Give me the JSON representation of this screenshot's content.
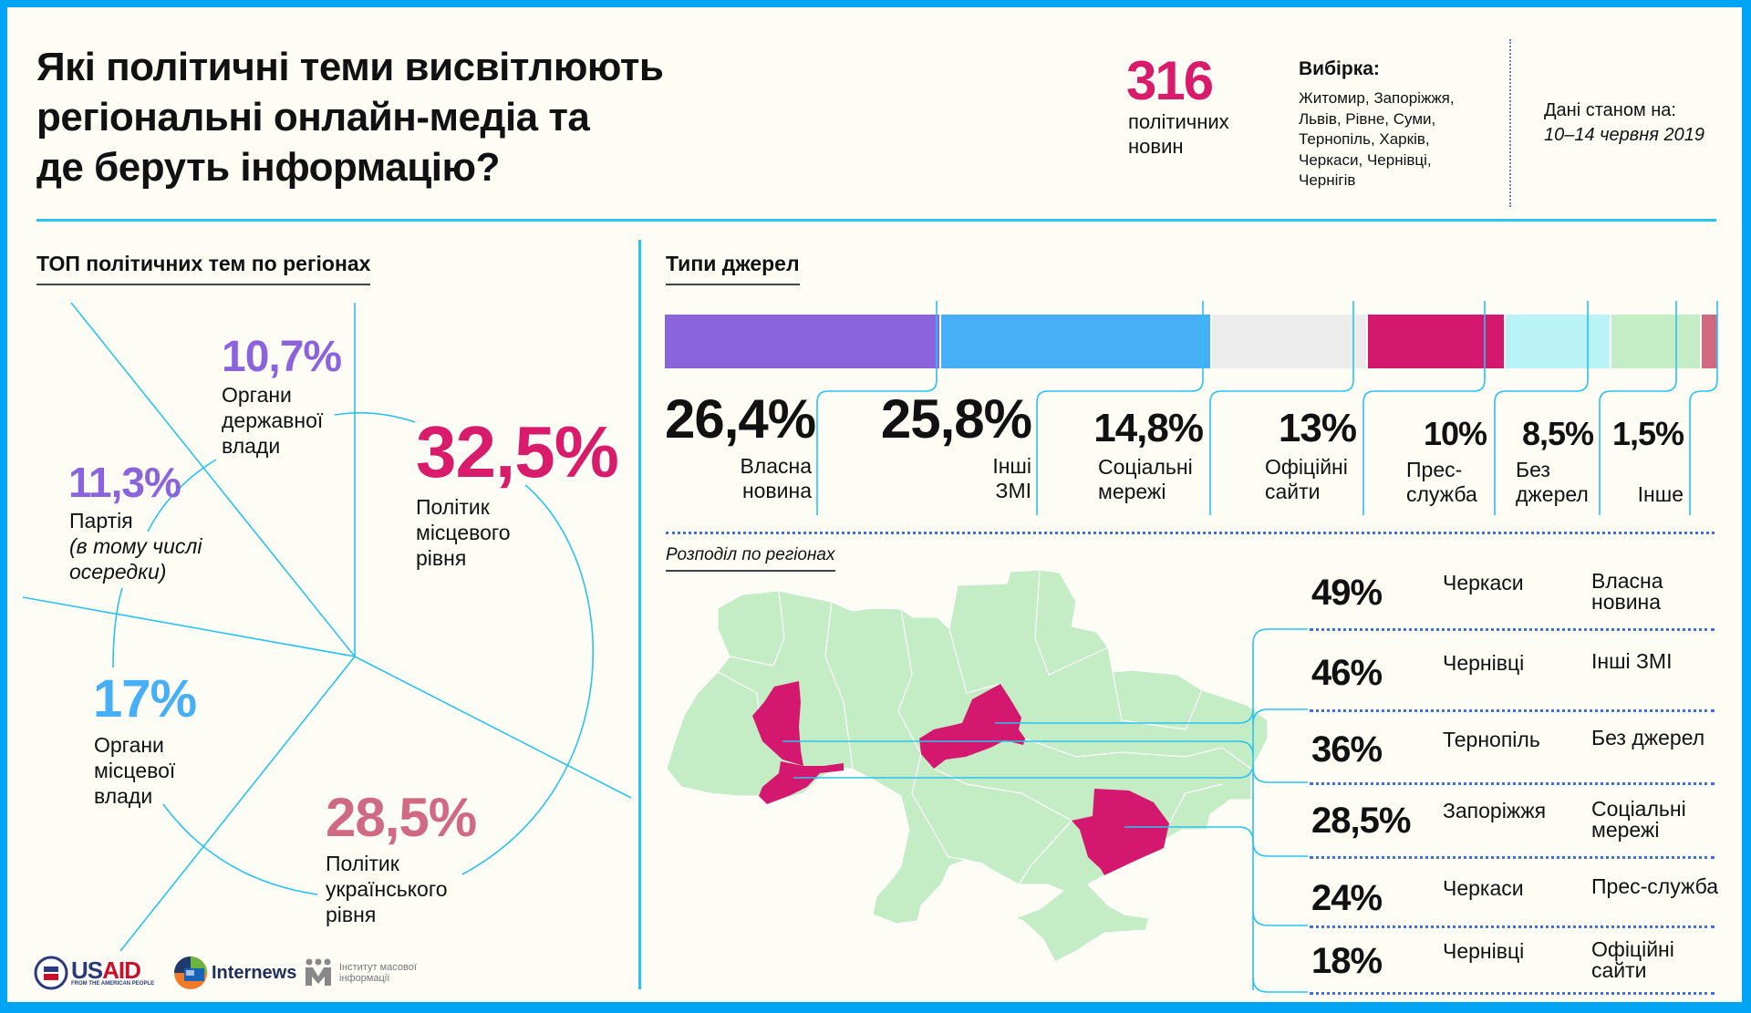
{
  "header": {
    "title": "Які політичні теми висвітлюють\nрегіональні онлайн-медіа та\nде беруть інформацію?",
    "news_count": "316",
    "news_count_label": "політичних новин",
    "sample_heading": "Вибірка:",
    "sample_list": "Житомир, Запоріжжя, Львів, Рівне, Суми, Тернопіль, Харків, Черкаси, Чернівці, Чернігів",
    "date_heading": "Дані станом на:",
    "date_value": "10–14 червня 2019"
  },
  "topics": {
    "heading": "ТОП політичних тем по регіонах",
    "items": [
      {
        "value": "10,7%",
        "label": "Органи державної влади",
        "color": "#8b63dd"
      },
      {
        "value": "11,3%",
        "label": "Партія",
        "note": "в тому числі осередки",
        "color": "#8b63dd"
      },
      {
        "value": "32,5%",
        "label": "Політик місцевого рівня",
        "color": "#d81b6a"
      },
      {
        "value": "17%",
        "label": "Органи місцевої влади",
        "color": "#47aff5"
      },
      {
        "value": "28,5%",
        "label": "Політик українського рівня",
        "color": "#d06a82"
      }
    ]
  },
  "sources": {
    "heading": "Типи джерел",
    "items": [
      {
        "value": "26,4%",
        "share": 26.4,
        "label": "Власна новина",
        "color": "#8b63dd"
      },
      {
        "value": "25,8%",
        "share": 25.8,
        "label": "Інші ЗМІ",
        "color": "#47aff5"
      },
      {
        "value": "14,8%",
        "share": 14.8,
        "label": "Соціальні мережі",
        "color": "#ececec"
      },
      {
        "value": "13%",
        "share": 13,
        "label": "Офіційні сайти",
        "color": "#d5186f"
      },
      {
        "value": "10%",
        "share": 10,
        "label": "Прес-служба",
        "color": "#b9f3f8"
      },
      {
        "value": "8,5%",
        "share": 8.5,
        "label": "Без джерел",
        "color": "#c5edc5"
      },
      {
        "value": "1,5%",
        "share": 1.5,
        "label": "Інше",
        "color": "#d06a82"
      }
    ]
  },
  "regions": {
    "heading": "Розподіл по регіонах",
    "rows": [
      {
        "value": "49%",
        "city": "Черкаси",
        "type": "Власна новина"
      },
      {
        "value": "46%",
        "city": "Чернівці",
        "type": "Інші ЗМІ"
      },
      {
        "value": "36%",
        "city": "Тернопіль",
        "type": "Без джерел"
      },
      {
        "value": "28,5%",
        "city": "Запоріжжя",
        "type": "Соціальні мережі"
      },
      {
        "value": "24%",
        "city": "Черкаси",
        "type": "Прес-служба"
      },
      {
        "value": "18%",
        "city": "Чернівці",
        "type": "Офіційні сайти"
      }
    ],
    "map_colors": {
      "base": "#c5edc5",
      "highlight": "#d5186f"
    }
  },
  "logos": {
    "usaid": "USAID",
    "usaid_tagline": "FROM THE AMERICAN PEOPLE",
    "internews": "Internews",
    "imi": "Інститут масової інформації"
  }
}
